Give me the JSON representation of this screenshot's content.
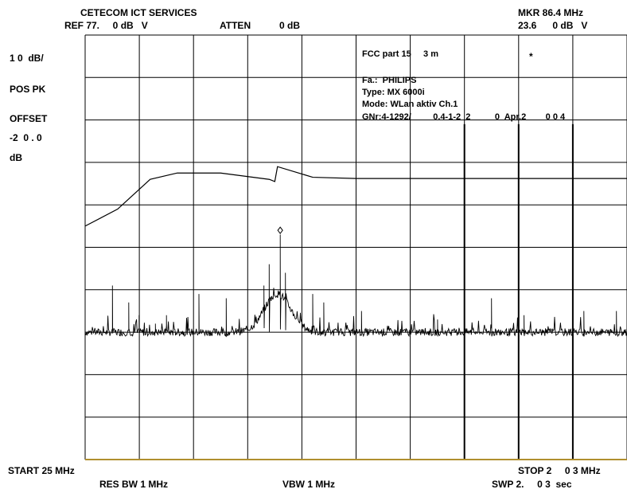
{
  "header": {
    "company": "CETECOM ICT SERVICES",
    "ref_line": "REF 77.     0 dB   V",
    "atten_label": "ATTEN",
    "atten_value": "0 dB",
    "marker_line": "MKR 86.4 MHz",
    "marker_value": "23.6      0 dB   V"
  },
  "left_panel": {
    "scale": "1 0  dB/",
    "detector": "POS PK",
    "offset_label": "OFFSET",
    "offset_value": "-2  0 . 0",
    "offset_unit": "dB"
  },
  "annotation": {
    "standard": "FCC part 15     3 m",
    "marker_symbol": "*",
    "manufacturer": "Fa.:  PHILIPS",
    "type": "Type: MX 6000i",
    "mode": "Mode: WLan aktiv Ch.1",
    "gnr": "GNr:4-1292/         0.4-1-2  2          0  Apr.2        0 0 4"
  },
  "footer": {
    "start": "START 25 MHz",
    "stop": "STOP 2     0 3 MHz",
    "res_bw": "RES BW 1 MHz",
    "vbw": "VBW 1 MHz",
    "swp": "SWP 2.     0 3  sec"
  },
  "chart_data": {
    "type": "line",
    "grid": true,
    "x_divisions": 10,
    "y_divisions": 10,
    "series": [
      {
        "role": "limit",
        "points": [
          [
            0.0,
            5.5
          ],
          [
            0.6,
            5.9
          ],
          [
            1.2,
            6.6
          ],
          [
            1.7,
            6.75
          ],
          [
            2.5,
            6.75
          ],
          [
            3.4,
            6.6
          ],
          [
            3.5,
            6.55
          ],
          [
            3.55,
            6.9
          ],
          [
            4.2,
            6.65
          ],
          [
            5.0,
            6.62
          ],
          [
            10.0,
            6.62
          ]
        ]
      },
      {
        "role": "measurement",
        "baseline_div": 3.0,
        "peaks": [
          [
            0.5,
            4.1
          ],
          [
            0.8,
            3.7
          ],
          [
            1.0,
            3.4
          ],
          [
            1.3,
            3.2
          ],
          [
            1.5,
            3.4
          ],
          [
            2.1,
            3.9
          ],
          [
            2.6,
            3.8
          ],
          [
            3.3,
            4.1
          ],
          [
            3.4,
            4.6
          ],
          [
            3.6,
            5.3
          ],
          [
            3.7,
            4.4
          ],
          [
            4.2,
            3.9
          ],
          [
            4.4,
            3.7
          ],
          [
            5.1,
            3.5
          ],
          [
            6.5,
            3.3
          ],
          [
            7.5,
            3.8
          ],
          [
            8.1,
            3.4
          ],
          [
            9.2,
            3.5
          ],
          [
            9.8,
            3.5
          ]
        ],
        "marker": [
          3.6,
          5.4
        ]
      }
    ]
  }
}
